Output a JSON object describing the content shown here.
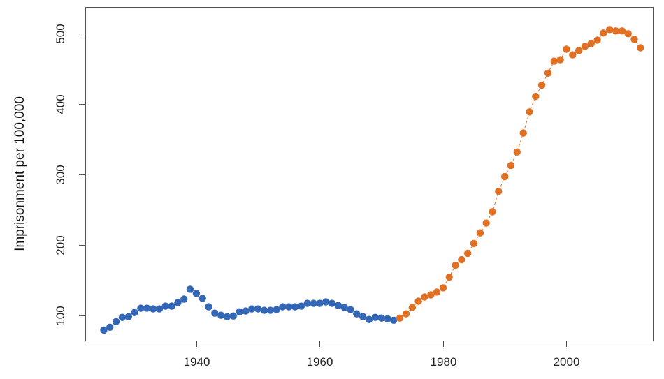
{
  "chart_data": {
    "type": "scatter",
    "title": "",
    "xlabel": "",
    "ylabel": "Imprisonment per 100,000",
    "xlim": [
      1922,
      2014
    ],
    "ylim": [
      64,
      538
    ],
    "xticks": [
      1940,
      1960,
      1980,
      2000
    ],
    "yticks": [
      100,
      200,
      300,
      400,
      500
    ],
    "grid": false,
    "legend": "none",
    "colors": {
      "series_1": "#3366b5",
      "series_2": "#e07024",
      "axis": "#555555"
    },
    "series": [
      {
        "x": [
          1925,
          1926,
          1927,
          1928,
          1929,
          1930,
          1931,
          1932,
          1933,
          1934,
          1935,
          1936,
          1937,
          1938,
          1939,
          1940,
          1941,
          1942,
          1943,
          1944,
          1945,
          1946,
          1947,
          1948,
          1949,
          1950,
          1951,
          1952,
          1953,
          1954,
          1955,
          1956,
          1957,
          1958,
          1959,
          1960,
          1961,
          1962,
          1963,
          1964,
          1965,
          1966,
          1967,
          1968,
          1969,
          1970,
          1971,
          1972
        ],
        "values": [
          79,
          83,
          91,
          97,
          98,
          104,
          110,
          110,
          109,
          109,
          113,
          113,
          118,
          123,
          137,
          131,
          124,
          112,
          103,
          100,
          98,
          99,
          105,
          106,
          109,
          109,
          107,
          107,
          108,
          112,
          112,
          112,
          113,
          117,
          117,
          117,
          119,
          117,
          114,
          111,
          108,
          102,
          98,
          94,
          97,
          96,
          95,
          93
        ]
      },
      {
        "x": [
          1973,
          1974,
          1975,
          1976,
          1977,
          1978,
          1979,
          1980,
          1981,
          1982,
          1983,
          1984,
          1985,
          1986,
          1987,
          1988,
          1989,
          1990,
          1991,
          1992,
          1993,
          1994,
          1995,
          1996,
          1997,
          1998,
          1999,
          2000,
          2001,
          2002,
          2003,
          2004,
          2005,
          2006,
          2007,
          2008,
          2009,
          2010,
          2011,
          2012
        ],
        "values": [
          96,
          102,
          111,
          120,
          126,
          129,
          133,
          139,
          154,
          171,
          179,
          188,
          202,
          217,
          231,
          247,
          276,
          297,
          313,
          332,
          359,
          389,
          411,
          427,
          444,
          461,
          463,
          478,
          470,
          476,
          482,
          486,
          491,
          501,
          506,
          504,
          504,
          500,
          492,
          480
        ]
      }
    ],
    "connector": {
      "style": "dashed",
      "between_series": 2
    }
  }
}
